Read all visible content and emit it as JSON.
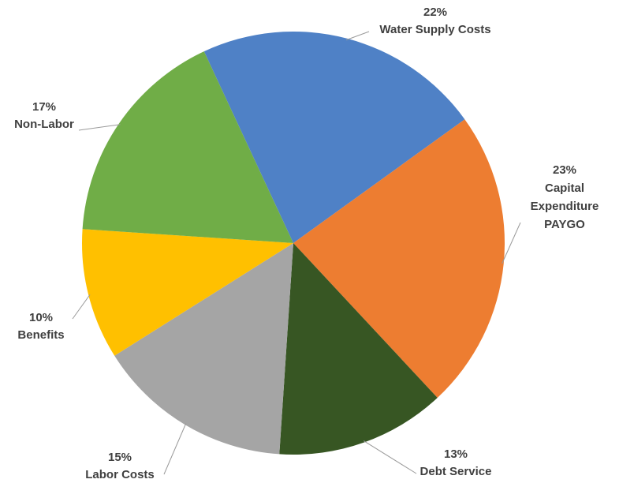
{
  "chart_data": {
    "type": "pie",
    "title": "",
    "slices": [
      {
        "label_lines": [
          "Water Supply Costs"
        ],
        "pct_label": "22%",
        "value": 22,
        "color": "#4f81c6"
      },
      {
        "label_lines": [
          "Capital",
          "Expenditure",
          "PAYGO"
        ],
        "pct_label": "23%",
        "value": 23,
        "color": "#ed7d31"
      },
      {
        "label_lines": [
          "Debt Service"
        ],
        "pct_label": "13%",
        "value": 13,
        "color": "#375623"
      },
      {
        "label_lines": [
          "Labor Costs"
        ],
        "pct_label": "15%",
        "value": 15,
        "color": "#a5a5a5"
      },
      {
        "label_lines": [
          "Benefits"
        ],
        "pct_label": "10%",
        "value": 10,
        "color": "#ffc000"
      },
      {
        "label_lines": [
          "Non-Labor"
        ],
        "pct_label": "17%",
        "value": 17,
        "color": "#70ad47"
      }
    ],
    "start_angle_deg": -25,
    "direction": "clockwise",
    "legend": "none"
  }
}
